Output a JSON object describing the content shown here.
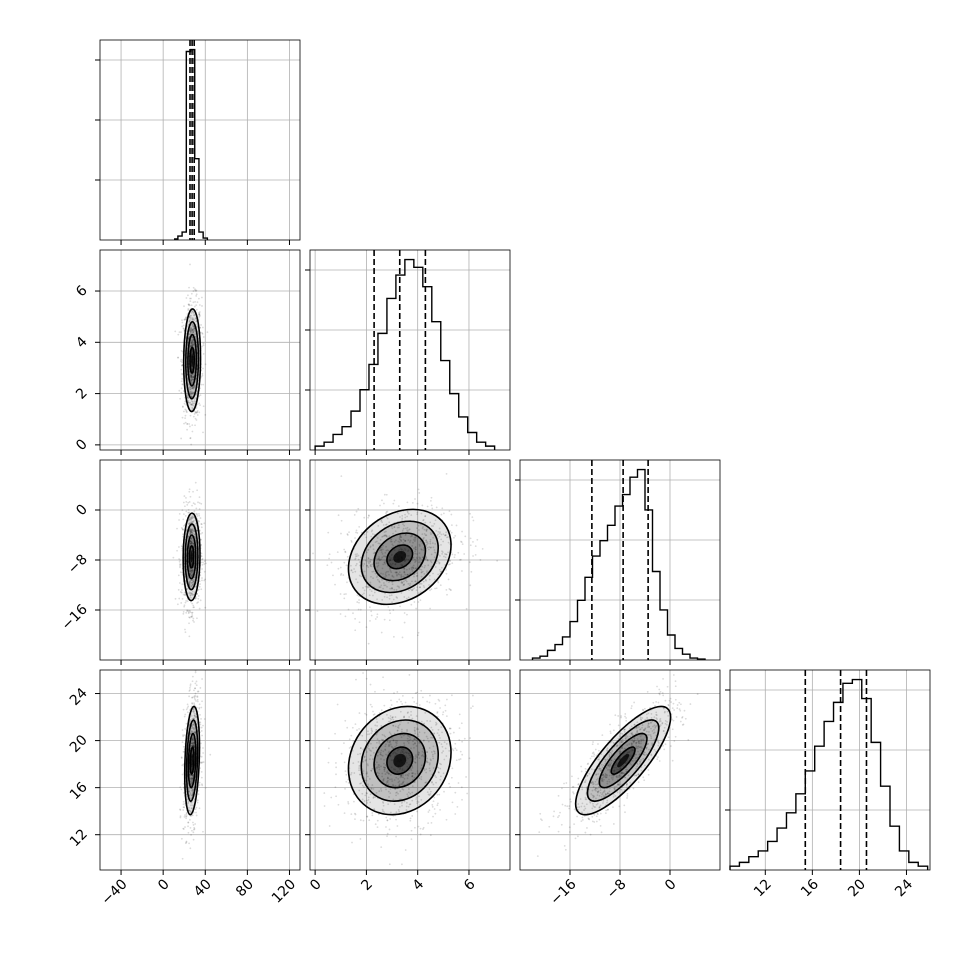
{
  "chart_data": {
    "type": "corner",
    "parameters": [
      {
        "axis_range": [
          -60,
          130
        ],
        "ticks": [
          -40,
          0,
          40,
          80,
          120
        ],
        "tick_labels": [
          "−40",
          "0",
          "40",
          "80",
          "120"
        ],
        "median": 27.5,
        "quantiles": [
          25.5,
          27.5,
          29.5
        ],
        "histogram": {
          "bin_edges": [
            11,
            14,
            18,
            22,
            26,
            30,
            34,
            38,
            42
          ],
          "counts": [
            0.005,
            0.02,
            0.04,
            0.95,
            0.96,
            0.41,
            0.04,
            0.01
          ]
        }
      },
      {
        "axis_range": [
          -0.2,
          7.6
        ],
        "ticks": [
          0,
          2,
          4,
          6
        ],
        "tick_labels": [
          "0",
          "2",
          "4",
          "6"
        ],
        "median": 3.3,
        "quantiles": [
          2.3,
          3.3,
          4.3
        ],
        "histogram": {
          "bin_edges": [
            0.0,
            0.35,
            0.7,
            1.05,
            1.4,
            1.75,
            2.1,
            2.45,
            2.8,
            3.15,
            3.5,
            3.85,
            4.2,
            4.55,
            4.9,
            5.25,
            5.6,
            5.95,
            6.3,
            6.65,
            7.0
          ],
          "counts": [
            0.02,
            0.04,
            0.08,
            0.12,
            0.2,
            0.31,
            0.44,
            0.6,
            0.78,
            0.9,
            0.98,
            0.94,
            0.84,
            0.66,
            0.46,
            0.29,
            0.17,
            0.09,
            0.04,
            0.02
          ]
        }
      },
      {
        "axis_range": [
          -24,
          8
        ],
        "ticks": [
          -16,
          -8,
          0
        ],
        "tick_labels": [
          "−16",
          "−8",
          "0"
        ],
        "median": -7.5,
        "quantiles": [
          -12.5,
          -7.5,
          -3.5
        ],
        "histogram": {
          "bin_edges": [
            -22.0,
            -20.8,
            -19.6,
            -18.4,
            -17.2,
            -16.0,
            -14.8,
            -13.6,
            -12.4,
            -11.2,
            -10.0,
            -8.8,
            -7.6,
            -6.4,
            -5.2,
            -4.0,
            -2.8,
            -1.6,
            -0.4,
            0.8,
            2.0,
            3.2,
            4.4,
            5.6
          ],
          "counts": [
            0.01,
            0.02,
            0.05,
            0.08,
            0.12,
            0.2,
            0.31,
            0.43,
            0.54,
            0.62,
            0.7,
            0.8,
            0.86,
            0.95,
            0.99,
            0.78,
            0.46,
            0.26,
            0.13,
            0.06,
            0.03,
            0.01,
            0.005
          ]
        }
      },
      {
        "axis_range": [
          9,
          26
        ],
        "ticks": [
          12,
          16,
          20,
          24
        ],
        "tick_labels": [
          "12",
          "16",
          "20",
          "24"
        ],
        "median": 18.4,
        "quantiles": [
          15.4,
          18.4,
          20.6
        ],
        "histogram": {
          "bin_edges": [
            9.0,
            9.8,
            10.6,
            11.4,
            12.2,
            13.0,
            13.8,
            14.6,
            15.4,
            16.2,
            17.0,
            17.8,
            18.6,
            19.4,
            20.2,
            21.0,
            21.8,
            22.6,
            23.4,
            24.2,
            25.0,
            25.8
          ],
          "counts": [
            0.02,
            0.04,
            0.07,
            0.1,
            0.15,
            0.22,
            0.3,
            0.4,
            0.52,
            0.65,
            0.78,
            0.88,
            0.98,
            1.0,
            0.9,
            0.67,
            0.44,
            0.23,
            0.1,
            0.04,
            0.02
          ]
        }
      }
    ],
    "pairs": [
      {
        "x_param": 0,
        "y_param": 1,
        "center": [
          27.5,
          3.3
        ],
        "sigma": [
          4,
          1.0
        ],
        "rho": 0.05,
        "contour_levels": [
          0.5,
          1.0,
          1.5,
          2.0
        ]
      },
      {
        "x_param": 0,
        "y_param": 2,
        "center": [
          27,
          -7.5
        ],
        "sigma": [
          4,
          3.5
        ],
        "rho": 0.05,
        "contour_levels": [
          0.5,
          1.0,
          1.5,
          2.0
        ]
      },
      {
        "x_param": 1,
        "y_param": 2,
        "center": [
          3.3,
          -7.5
        ],
        "sigma": [
          1.0,
          3.8
        ],
        "rho": 0.25,
        "contour_levels": [
          0.5,
          1.0,
          1.5,
          2.0
        ]
      },
      {
        "x_param": 0,
        "y_param": 3,
        "center": [
          27.5,
          18.3
        ],
        "sigma": [
          3.5,
          2.3
        ],
        "rho": 0.25,
        "contour_levels": [
          0.5,
          1.0,
          1.5,
          2.0
        ]
      },
      {
        "x_param": 1,
        "y_param": 3,
        "center": [
          3.3,
          18.3
        ],
        "sigma": [
          1.0,
          2.3
        ],
        "rho": 0.15,
        "contour_levels": [
          0.5,
          1.0,
          1.5,
          2.0
        ]
      },
      {
        "x_param": 2,
        "y_param": 3,
        "center": [
          -7.5,
          18.3
        ],
        "sigma": [
          3.8,
          2.3
        ],
        "rho": 0.8,
        "contour_levels": [
          0.5,
          1.0,
          1.5,
          2.0
        ]
      }
    ],
    "grid": true,
    "colors": {
      "line": "#000000",
      "grid": "#b0b0b0",
      "density": "#000000"
    }
  }
}
